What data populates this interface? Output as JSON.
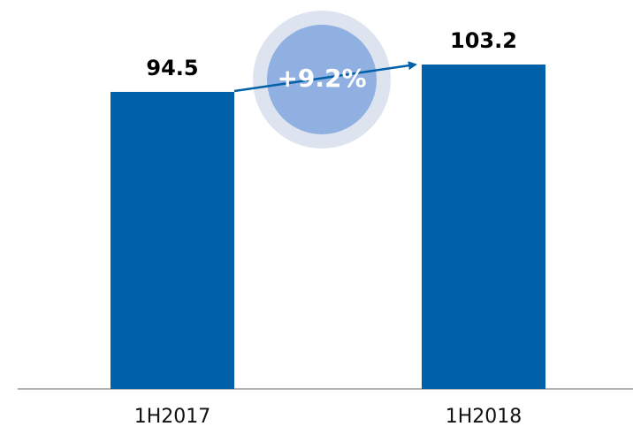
{
  "chart_data": {
    "type": "bar",
    "categories": [
      "1H2017",
      "1H2018"
    ],
    "values": [
      94.5,
      103.2
    ],
    "color": "#0060a8",
    "annotation": "+9.2%"
  }
}
